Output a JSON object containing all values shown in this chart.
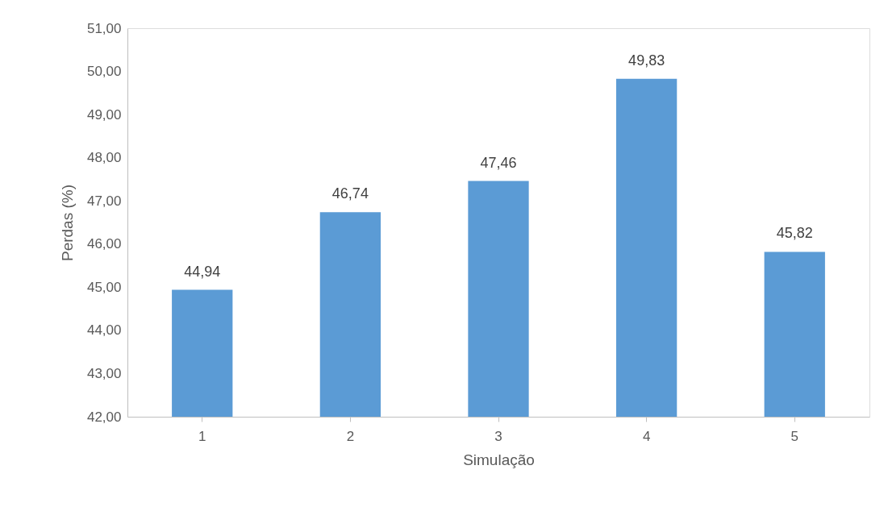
{
  "chart_data": {
    "type": "bar",
    "xlabel": "Simulação",
    "ylabel": "Perdas (%)",
    "categories": [
      "1",
      "2",
      "3",
      "4",
      "5"
    ],
    "values": [
      44.94,
      46.74,
      47.46,
      49.83,
      45.82
    ],
    "value_labels": [
      "44,94",
      "46,74",
      "47,46",
      "49,83",
      "45,82"
    ],
    "color": "#5b9bd5",
    "ylim": [
      42,
      51
    ],
    "yticks": [
      {
        "value": 42,
        "label": "42,00"
      },
      {
        "value": 43,
        "label": "43,00"
      },
      {
        "value": 44,
        "label": "44,00"
      },
      {
        "value": 45,
        "label": "45,00"
      },
      {
        "value": 46,
        "label": "46,00"
      },
      {
        "value": 47,
        "label": "47,00"
      },
      {
        "value": 48,
        "label": "48,00"
      },
      {
        "value": 49,
        "label": "49,00"
      },
      {
        "value": 50,
        "label": "50,00"
      },
      {
        "value": 51,
        "label": "51,00"
      }
    ],
    "grid": false
  }
}
